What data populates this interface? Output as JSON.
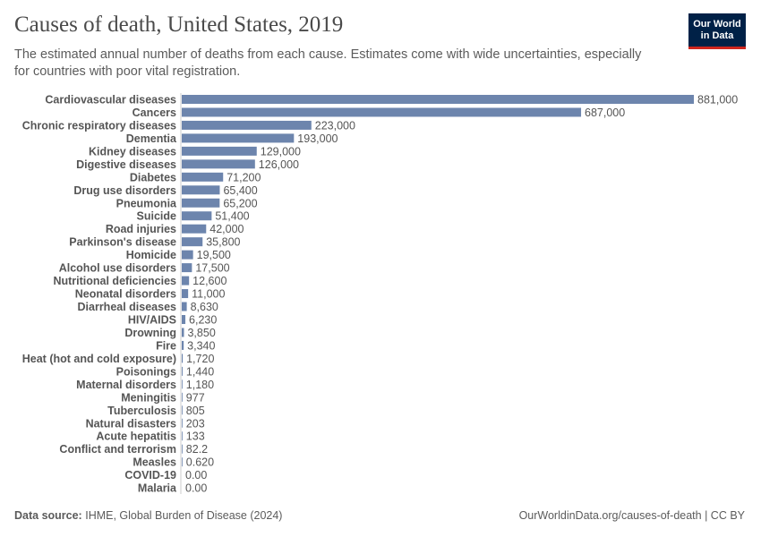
{
  "header": {
    "title": "Causes of death, United States, 2019",
    "subtitle": "The estimated annual number of deaths from each cause. Estimates come with wide uncertainties, especially for countries with poor vital registration.",
    "logo_line1": "Our World",
    "logo_line2": "in Data"
  },
  "footer": {
    "source_label": "Data source:",
    "source": "IHME, Global Burden of Disease (2024)",
    "url": "OurWorldinData.org/causes-of-death | CC BY"
  },
  "chart_data": {
    "type": "bar",
    "orientation": "horizontal",
    "bar_color": "#6d85ad",
    "categories": [
      "Cardiovascular diseases",
      "Cancers",
      "Chronic respiratory diseases",
      "Dementia",
      "Kidney diseases",
      "Digestive diseases",
      "Diabetes",
      "Drug use disorders",
      "Pneumonia",
      "Suicide",
      "Road injuries",
      "Parkinson's disease",
      "Homicide",
      "Alcohol use disorders",
      "Nutritional deficiencies",
      "Neonatal disorders",
      "Diarrheal diseases",
      "HIV/AIDS",
      "Drowning",
      "Fire",
      "Heat (hot and cold exposure)",
      "Poisonings",
      "Maternal disorders",
      "Meningitis",
      "Tuberculosis",
      "Natural disasters",
      "Acute hepatitis",
      "Conflict and terrorism",
      "Measles",
      "COVID-19",
      "Malaria"
    ],
    "values": [
      881000,
      687000,
      223000,
      193000,
      129000,
      126000,
      71200,
      65400,
      65200,
      51400,
      42000,
      35800,
      19500,
      17500,
      12600,
      11000,
      8630,
      6230,
      3850,
      3340,
      1720,
      1440,
      1180,
      977,
      805,
      203,
      133,
      82.2,
      0.62,
      0,
      0
    ],
    "labels": [
      "881,000",
      "687,000",
      "223,000",
      "193,000",
      "129,000",
      "126,000",
      "71,200",
      "65,400",
      "65,200",
      "51,400",
      "42,000",
      "35,800",
      "19,500",
      "17,500",
      "12,600",
      "11,000",
      "8,630",
      "6,230",
      "3,850",
      "3,340",
      "1,720",
      "1,440",
      "1,180",
      "977",
      "805",
      "203",
      "133",
      "82.2",
      "0.620",
      "0.00",
      "0.00"
    ]
  }
}
